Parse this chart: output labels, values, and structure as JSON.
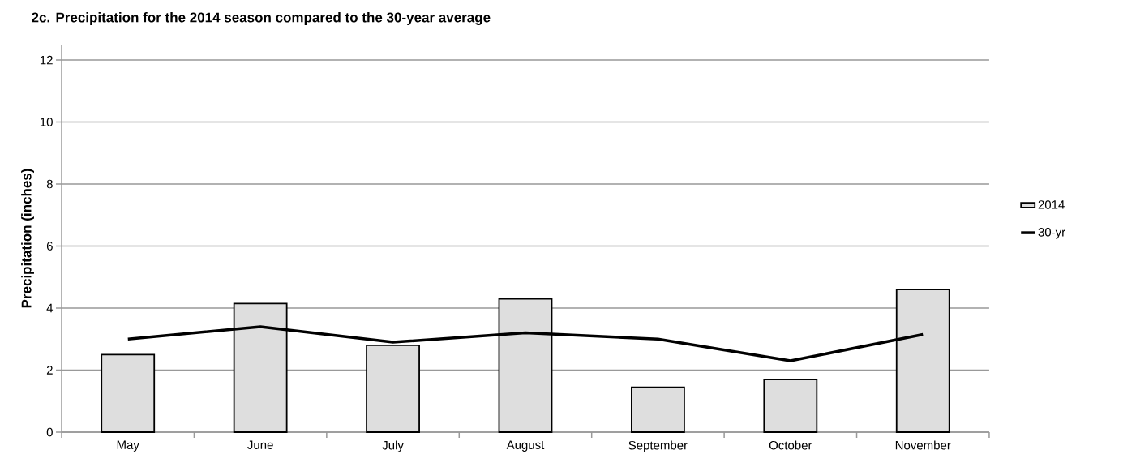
{
  "chart_data": {
    "type": "bar",
    "title": "2c.  Precipitation for the 2014 season compared to the 30-year average",
    "ylabel": "Precipitation (inches)",
    "categories": [
      "May",
      "June",
      "July",
      "August",
      "September",
      "October",
      "November"
    ],
    "series": [
      {
        "name": "2014",
        "color": "#dedede",
        "values": [
          2.5,
          4.15,
          2.8,
          4.3,
          1.45,
          1.7,
          4.6
        ]
      },
      {
        "name": "30-yr",
        "type": "line",
        "color": "#000000",
        "marker": "none",
        "values": [
          3.0,
          3.4,
          2.9,
          3.2,
          3.0,
          2.3,
          3.15
        ]
      }
    ],
    "ylim": [
      0,
      12.5
    ],
    "yticks": [
      0,
      2,
      4,
      6,
      8,
      10,
      12
    ],
    "grid": "y",
    "legend": "right"
  }
}
